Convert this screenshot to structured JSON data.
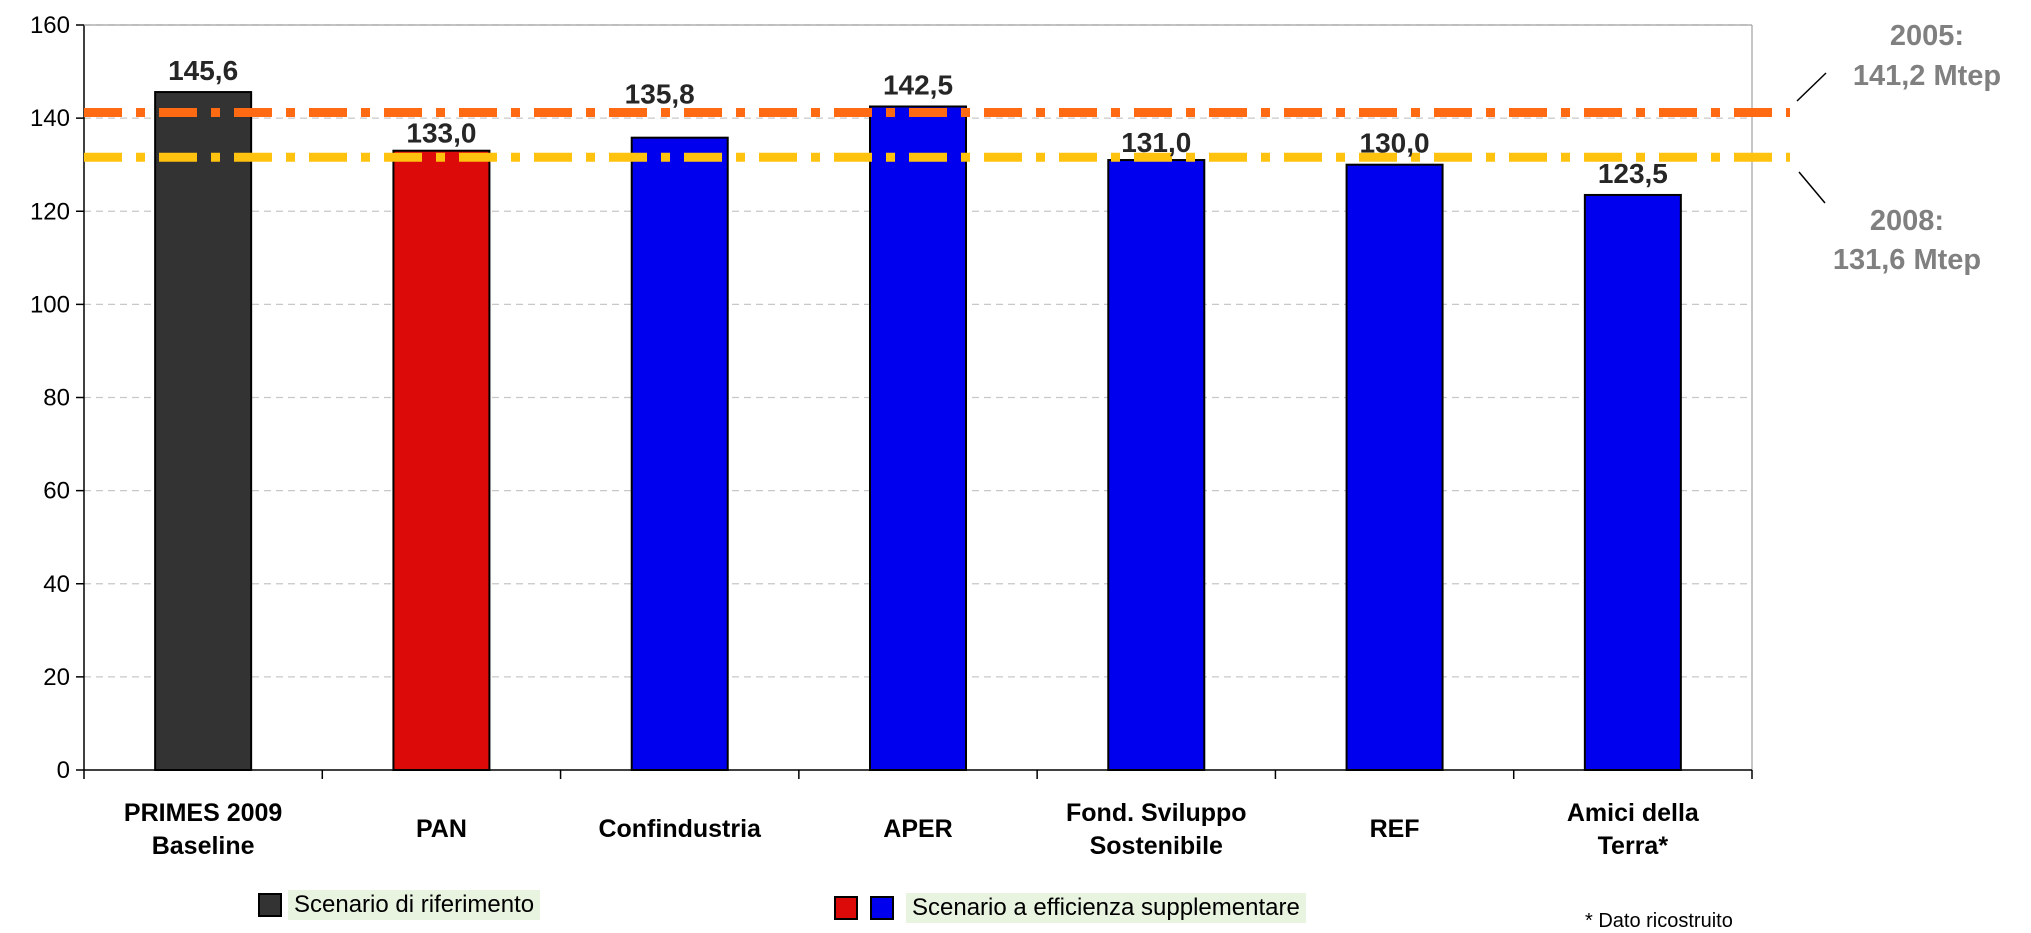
{
  "chart_data": {
    "type": "bar",
    "categories": [
      "PRIMES 2009\nBaseline",
      "PAN",
      "Confindustria",
      "APER",
      "Fond. Sviluppo\nSostenibile",
      "REF",
      "Amici della\nTerra*"
    ],
    "values": [
      145.6,
      133.0,
      135.8,
      142.5,
      131.0,
      130.0,
      123.5
    ],
    "value_labels": [
      "145,6",
      "133,0",
      "135,8",
      "142,5",
      "131,0",
      "130,0",
      "123,5"
    ],
    "bar_colors": [
      "#333333",
      "#dd0a0a",
      "#0000ee",
      "#0000ee",
      "#0000ee",
      "#0000ee",
      "#0000ee"
    ],
    "ylim": [
      0,
      160
    ],
    "yticks": [
      "0",
      "20",
      "40",
      "60",
      "80",
      "100",
      "120",
      "140",
      "160"
    ],
    "grid": true,
    "reference_lines": [
      {
        "label_year": "2005:",
        "label_value": "141,2 Mtep",
        "value": 141.2,
        "color": "#ff6a13"
      },
      {
        "label_year": "2008:",
        "label_value": "131,6 Mtep",
        "value": 131.6,
        "color": "#ffc20e"
      }
    ],
    "legend": [
      {
        "label": "Scenario di riferimento",
        "colors": [
          "#333333"
        ]
      },
      {
        "label": "Scenario a efficienza supplementare",
        "colors": [
          "#dd0a0a",
          "#0000ee"
        ]
      }
    ],
    "footnote": "* Dato ricostruito"
  }
}
